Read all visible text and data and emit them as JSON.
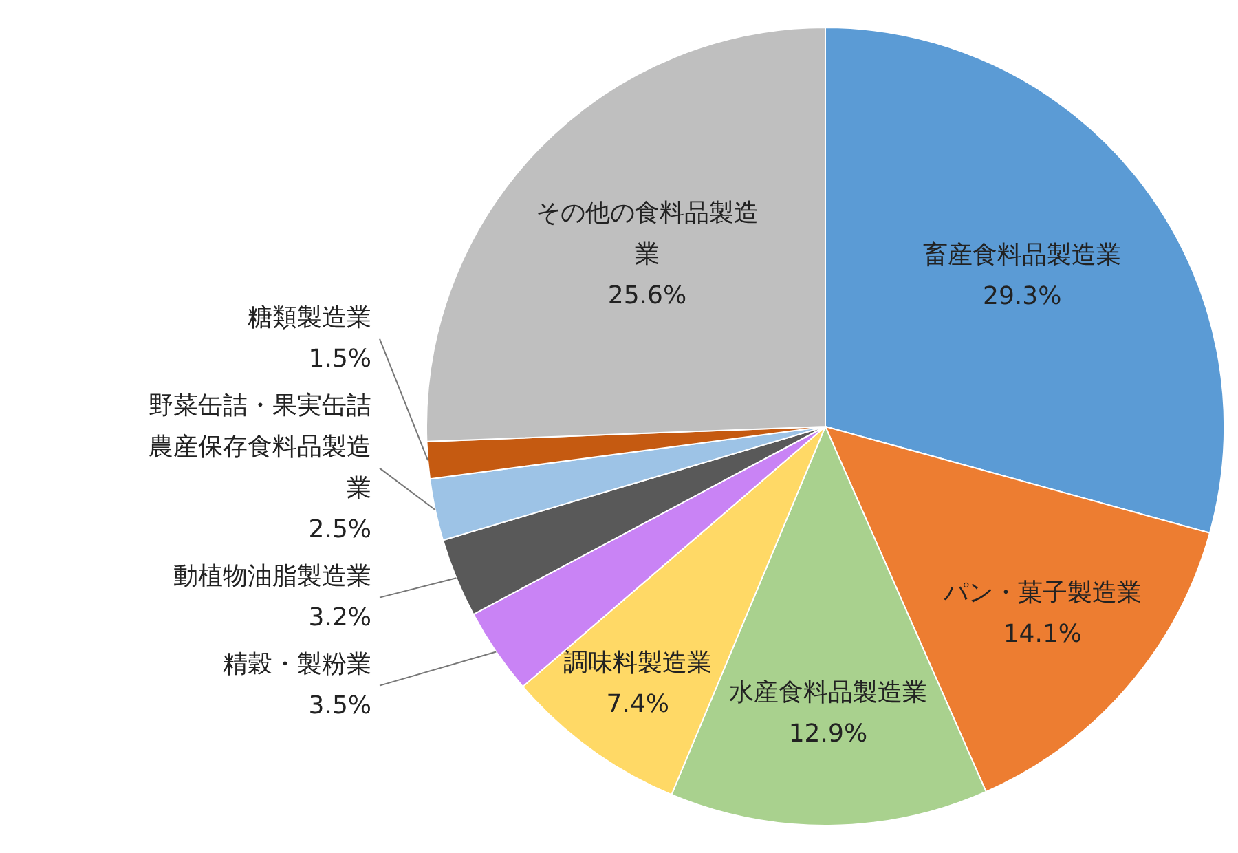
{
  "chart_data": {
    "type": "pie",
    "categories": [
      "畜産食料品製造業",
      "パン・菓子製造業",
      "水産食料品製造業",
      "調味料製造業",
      "精穀・製粉業",
      "動植物油脂製造業",
      "野菜缶詰・果実缶詰農産保存食料品製造業",
      "糖類製造業",
      "その他の食料品製造業"
    ],
    "values": [
      29.3,
      14.1,
      12.9,
      7.4,
      3.5,
      3.2,
      2.5,
      1.5,
      25.6
    ],
    "colors": [
      "#5b9bd5",
      "#ed7d31",
      "#a9d18e",
      "#ffd966",
      "#c983f5",
      "#595959",
      "#9dc3e6",
      "#c55a11",
      "#bfbfbf"
    ],
    "value_labels": [
      "29.3%",
      "14.1%",
      "12.9%",
      "7.4%",
      "3.5%",
      "3.2%",
      "2.5%",
      "1.5%",
      "25.6%"
    ]
  }
}
